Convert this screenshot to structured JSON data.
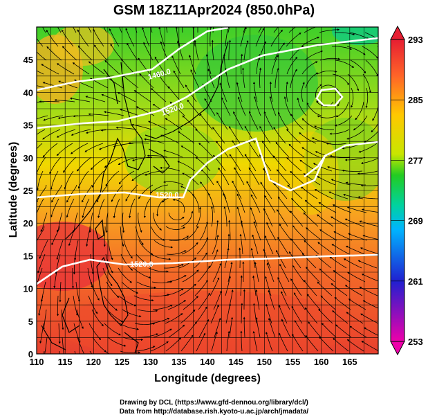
{
  "title": "GSM 18Z11Apr2024 (850.0hPa)",
  "xlabel": "Longitude (degrees)",
  "ylabel": "Latitude  (degrees)",
  "x_ticks": [
    "110",
    "115",
    "120",
    "125",
    "130",
    "135",
    "140",
    "145",
    "150",
    "155",
    "160",
    "165"
  ],
  "y_ticks": [
    "0",
    "5",
    "10",
    "15",
    "20",
    "25",
    "30",
    "35",
    "40",
    "45"
  ],
  "colorbar": {
    "labels": [
      "293",
      "285",
      "277",
      "269",
      "261",
      "253"
    ],
    "range": [
      253,
      293
    ],
    "stops": [
      "#ee00aa",
      "#2020d0",
      "#00b4ff",
      "#00d2a0",
      "#22cc22",
      "#c8e600",
      "#ffc800",
      "#ff6428",
      "#e61e32"
    ]
  },
  "contour_labels": [
    "1460.0",
    "1520.0",
    "1520.0",
    "1520.0"
  ],
  "credit_line1": "Drawing by DCL (https://www.gfd-dennou.org/library/dcl/)",
  "credit_line2": "Data from http://database.rish.kyoto-u.ac.jp/arch/jmadata/",
  "chart_data": {
    "type": "heatmap",
    "title": "GSM 18Z11Apr2024 (850.0hPa)",
    "xlabel": "Longitude (degrees)",
    "ylabel": "Latitude  (degrees)",
    "xlim": [
      110,
      170
    ],
    "ylim": [
      0,
      50
    ],
    "colorbar_range": [
      253,
      293
    ],
    "colorbar_ticks": [
      293,
      285,
      277,
      269,
      261,
      253
    ],
    "grid": true,
    "streamlines": true,
    "temperature_regions": [
      {
        "lon": 112,
        "lat": 47,
        "value": 284
      },
      {
        "lon": 125,
        "lat": 47,
        "value": 276
      },
      {
        "lon": 150,
        "lat": 45,
        "value": 276
      },
      {
        "lon": 162,
        "lat": 40,
        "value": 279
      },
      {
        "lon": 165,
        "lat": 35,
        "value": 276
      },
      {
        "lon": 112,
        "lat": 35,
        "value": 282
      },
      {
        "lon": 135,
        "lat": 33,
        "value": 278
      },
      {
        "lon": 155,
        "lat": 30,
        "value": 281
      },
      {
        "lon": 120,
        "lat": 25,
        "value": 286
      },
      {
        "lon": 140,
        "lat": 25,
        "value": 285
      },
      {
        "lon": 165,
        "lat": 22,
        "value": 283
      },
      {
        "lon": 112,
        "lat": 17,
        "value": 292
      },
      {
        "lon": 130,
        "lat": 10,
        "value": 289
      },
      {
        "lon": 150,
        "lat": 5,
        "value": 289
      },
      {
        "lon": 165,
        "lat": 10,
        "value": 287
      }
    ],
    "geopotential_height_labels": [
      1460.0,
      1520.0,
      1520.0,
      1520.0
    ]
  }
}
